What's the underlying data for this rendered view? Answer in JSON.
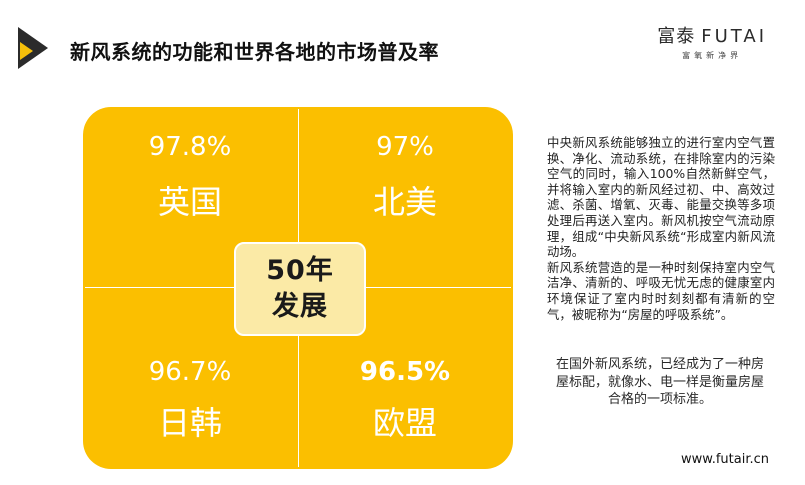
{
  "header": {
    "title": "新风系统的功能和世界各地的市场普及率",
    "brand_cn": "富泰",
    "brand_en": "FUTAI",
    "brand_tagline": "富氧新净界"
  },
  "panel": {
    "center_line1": "50年",
    "center_line2": "发展",
    "quadrants": [
      {
        "percent": "97.8%",
        "region": "英国"
      },
      {
        "percent": "97%",
        "region": "北美"
      },
      {
        "percent": "96.7%",
        "region": "日韩"
      },
      {
        "percent": "96.5%",
        "region": "欧盟"
      }
    ]
  },
  "side": {
    "paragraph1": "中央新风系统能够独立的进行室内空气置换、净化、流动系统，在排除室内的污染空气的同时，输入100%自然新鲜空气，并将输入室内的新风经过初、中、高效过滤、杀菌、增氧、灭毒、能量交换等多项处理后再送入室内。新风机按空气流动原理，组成“中央新风系统“形成室内新风流动场。\n新风系统营造的是一种时刻保持室内空气洁净、清新的、呼吸无忧无虑的健康室内环境保证了室内时时刻刻都有清新的空气，被昵称为“房屋的呼吸系统”。",
    "paragraph2": "在国外新风系统，已经成为了一种房屋标配，就像水、电一样是衡量房屋合格的一项标准。"
  },
  "footer": {
    "website": "www.futair.cn"
  },
  "colors": {
    "accent": "#fbbf00",
    "center_fill": "#fbeaa6",
    "dark": "#2b2b2b"
  }
}
